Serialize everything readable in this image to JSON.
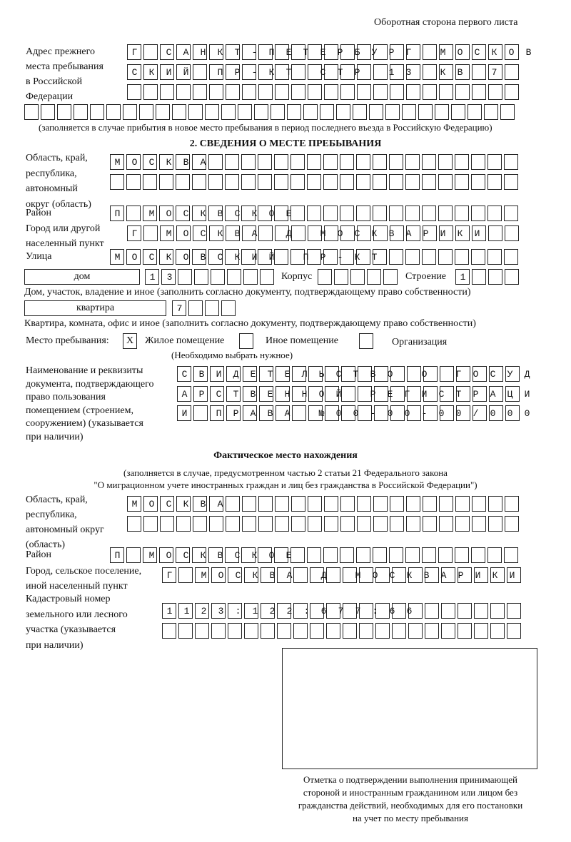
{
  "header": {
    "side_note": "Оборотная сторона первого листа"
  },
  "previous_address": {
    "label": [
      "Адрес прежнего",
      "места пребывания",
      "в Российской",
      "Федерации"
    ],
    "rows": [
      "Г САНКТ-ПЕТЕРБУРГ МОСКОВ",
      "СКИЙ ПР-КТ СТР 13 КВ 7",
      "",
      ""
    ],
    "note": "(заполняется в случае прибытия в новое место пребывания в период последнего въезда в Российскую Федерацию)"
  },
  "section2": {
    "title": "2. СВЕДЕНИЯ О МЕСТЕ ПРЕБЫВАНИЯ",
    "region_label": [
      "Область, край,",
      "республика,",
      "автономный",
      "округ (область)"
    ],
    "region_rows": [
      "МОСКВА",
      ""
    ],
    "district_label": "Район",
    "district": "П МОСКВСКОЕ",
    "city_label": [
      "Город или другой",
      "населенный пункт"
    ],
    "city": "Г МОСКВА Д МОСКВАРИКИ",
    "street_label": "Улица",
    "street": "МОСКОВСКИЙ ПР-КТ",
    "house_type": "дом",
    "house": "13",
    "korpus_label": "Корпус",
    "korpus": "",
    "building_label": "Строение",
    "building": "1",
    "house_note": "Дом, участок, владение и иное (заполнить согласно документу, подтверждающему право собственности)",
    "flat_type": "квартира",
    "flat": "7",
    "flat_note": "Квартира, комната, офис и иное (заполнить согласно документу, подтверждающему право собственности)",
    "stay_label": "Место пребывания:",
    "stay_options": [
      {
        "label": "Жилое помещение",
        "mark": "X"
      },
      {
        "label": "Иное помещение",
        "mark": ""
      },
      {
        "label": "Организация",
        "mark": ""
      }
    ],
    "stay_note": "(Необходимо выбрать нужное)",
    "doc_label": [
      "Наименование и реквизиты",
      "документа, подтверждающего",
      "право пользования",
      "помещением (строением,",
      "сооружением) (указывается",
      "при наличии)"
    ],
    "doc_rows": [
      "СВИДЕТЕЛЬСТВО О ГОСУД",
      "АРСТВЕННОЙ РЕГИСТРАЦИ",
      "И ПРАВА №00-00-00/000"
    ]
  },
  "actual": {
    "title": "Фактическое место нахождения",
    "note": [
      "(заполняется в случае, предусмотренном частью 2 статьи 21 Федерального закона",
      "\"О миграционном учете иностранных граждан и лиц без гражданства в Российской Федерации\")"
    ],
    "region_label": [
      "Область, край,",
      "республика,",
      "автономный округ",
      "(область)"
    ],
    "region_rows": [
      "МОСКВА",
      ""
    ],
    "district_label": "Район",
    "district": "П МОСКВСКОЕ",
    "city_label": [
      "Город, сельское поселение,",
      "иной населенный пункт"
    ],
    "city": "Г МОСКВА Д МОСКВАРИКИ",
    "cadastre_label": [
      "Кадастровый номер",
      "земельного или лесного",
      "участка (указывается",
      "при наличии)"
    ],
    "cadastre_rows": [
      "1123:122:677:66",
      ""
    ]
  },
  "stamp": {
    "caption": [
      "Отметка о подтверждении выполнения принимающей",
      "стороной и иностранным гражданином или лицом без",
      "гражданства действий, необходимых для его постановки",
      "на учет по месту пребывания"
    ]
  }
}
